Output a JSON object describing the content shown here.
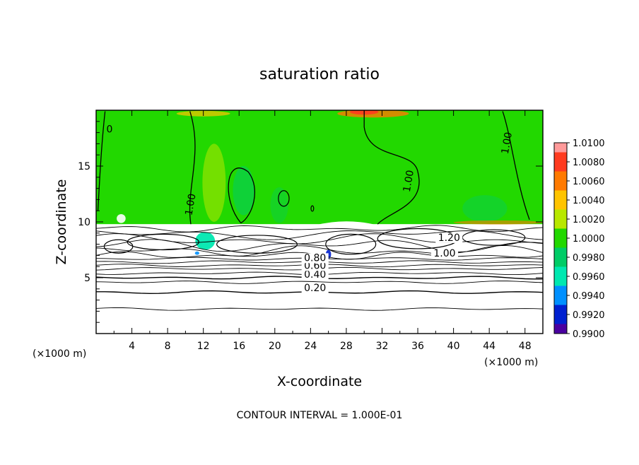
{
  "chart_data": {
    "type": "heatmap",
    "title": "saturation ratio",
    "xlabel": "X-coordinate",
    "ylabel": "Z-coordinate",
    "x_unit_label": "(×1000 m)",
    "z_unit_label": "(×1000 m)",
    "xlim": [
      0,
      50
    ],
    "ylim": [
      0,
      20
    ],
    "x_ticks": [
      4,
      8,
      12,
      16,
      20,
      24,
      28,
      32,
      36,
      40,
      44,
      48
    ],
    "y_ticks": [
      5,
      10,
      15
    ],
    "footer": "CONTOUR INTERVAL = 1.000E-01",
    "colorbar": {
      "levels": [
        "1.0100",
        "1.0080",
        "1.0060",
        "1.0040",
        "1.0020",
        "1.0000",
        "0.9980",
        "0.9960",
        "0.9940",
        "0.9920",
        "0.9900"
      ],
      "colors": [
        "#ff9a9a",
        "#ff3b1f",
        "#ff7a00",
        "#ffc400",
        "#b8e800",
        "#22d800",
        "#00cc66",
        "#00e8b0",
        "#0090ff",
        "#0020d0",
        "#4a00a0"
      ]
    },
    "contour_labels": [
      {
        "text": "0.20",
        "x": 24.5,
        "z": 3.8
      },
      {
        "text": "0.40",
        "x": 24.5,
        "z": 5.0
      },
      {
        "text": "0.60",
        "x": 24.5,
        "z": 5.8
      },
      {
        "text": "0.80",
        "x": 24.5,
        "z": 6.5
      },
      {
        "text": "1.00",
        "x": 39.0,
        "z": 6.9
      },
      {
        "text": "1.20",
        "x": 39.5,
        "z": 8.3
      },
      {
        "text": "1.00",
        "x": 10.6,
        "z": 11.3
      },
      {
        "text": "1.00",
        "x": 35.0,
        "z": 13.4
      },
      {
        "text": "1.00",
        "x": 46.0,
        "z": 16.8
      },
      {
        "text": "0",
        "x": 1.5,
        "z": 18.0
      }
    ],
    "regions": {
      "saturated_layer_z": [
        9.8,
        20
      ],
      "subsaturated_layer_z": [
        0,
        9.8
      ],
      "field_fill_color": "#22d800",
      "below_cloud_color": "#ffffff"
    }
  }
}
